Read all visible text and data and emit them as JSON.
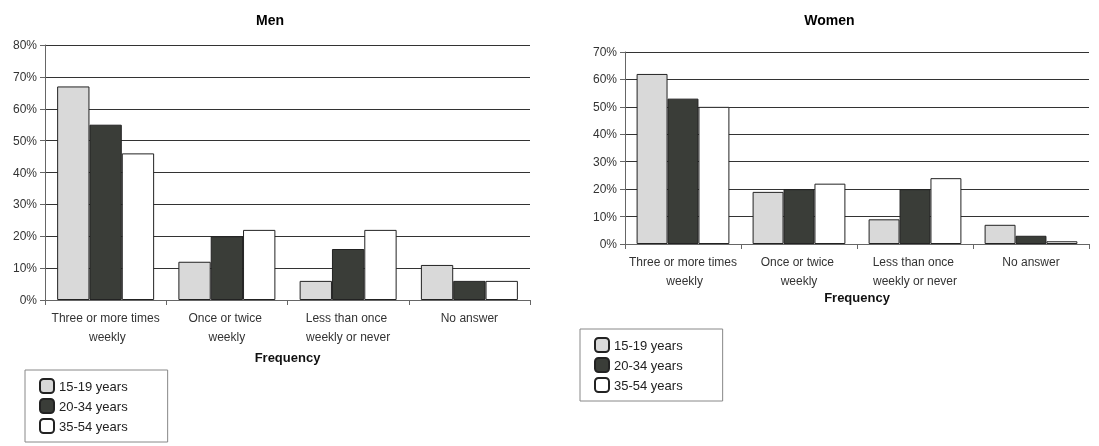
{
  "chart_data": [
    {
      "type": "bar",
      "title": "Men",
      "xlabel": "Frequency",
      "categories": [
        "Three or more times weekly",
        "Once or twice weekly",
        "Less than once weekly or never",
        "No answer"
      ],
      "series": [
        {
          "name": "15-19 years",
          "color": "#d9d9d9",
          "values": [
            67,
            12,
            6,
            11
          ]
        },
        {
          "name": "20-34 years",
          "color": "#3a3d38",
          "values": [
            55,
            20,
            16,
            6
          ]
        },
        {
          "name": "35-54 years",
          "color": "#ffffff",
          "values": [
            46,
            22,
            22,
            6
          ]
        }
      ],
      "ylim": [
        0,
        80
      ],
      "yticks": [
        {
          "value": 0,
          "label": "0%"
        },
        {
          "value": 10,
          "label": "10%"
        },
        {
          "value": 20,
          "label": "20%"
        },
        {
          "value": 30,
          "label": "30%"
        },
        {
          "value": 40,
          "label": "40%"
        },
        {
          "value": 50,
          "label": "50%"
        },
        {
          "value": 60,
          "label": "60%"
        },
        {
          "value": 70,
          "label": "70%"
        },
        {
          "value": 80,
          "label": "80%"
        }
      ],
      "grid": "y",
      "legend": "bottom left"
    },
    {
      "type": "bar",
      "title": "Women",
      "xlabel": "Frequency",
      "categories": [
        "Three or more times weekly",
        "Once or twice weekly",
        "Less than once weekly or never",
        "No answer"
      ],
      "series": [
        {
          "name": "15-19 years",
          "color": "#d9d9d9",
          "values": [
            62,
            19,
            9,
            7
          ]
        },
        {
          "name": "20-34 years",
          "color": "#3a3d38",
          "values": [
            53,
            20,
            20,
            3
          ]
        },
        {
          "name": "35-54 years",
          "color": "#ffffff",
          "values": [
            50,
            22,
            24,
            1
          ]
        }
      ],
      "ylim": [
        0,
        70
      ],
      "yticks": [
        {
          "value": 0,
          "label": "0%"
        },
        {
          "value": 10,
          "label": "10%"
        },
        {
          "value": 20,
          "label": "20%"
        },
        {
          "value": 30,
          "label": "30%"
        },
        {
          "value": 40,
          "label": "40%"
        },
        {
          "value": 50,
          "label": "50%"
        },
        {
          "value": 60,
          "label": "60%"
        },
        {
          "value": 70,
          "label": "70%"
        }
      ],
      "grid": "y",
      "legend": "bottom left"
    }
  ]
}
